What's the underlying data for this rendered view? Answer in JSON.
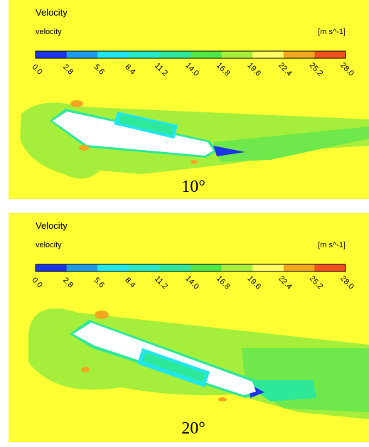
{
  "panels": [
    {
      "title": "Velocity",
      "variable": "velocity",
      "unit": "[m s^-1]",
      "colorbar": {
        "colors": [
          "#1c35e6",
          "#1e9be8",
          "#20e6ee",
          "#26e8c4",
          "#2ee89a",
          "#50e848",
          "#a6ee3c",
          "#ffff66",
          "#f2a81e",
          "#f2501c"
        ],
        "ticks": [
          "0.0",
          "2.8",
          "5.6",
          "8.4",
          "11.2",
          "14.0",
          "16.8",
          "19.6",
          "22.4",
          "25.2",
          "28.0"
        ]
      },
      "caption": "10°"
    },
    {
      "title": "Velocity",
      "variable": "velocity",
      "unit": "[m s^-1]",
      "colorbar": {
        "colors": [
          "#1c35e6",
          "#1e9be8",
          "#20e6ee",
          "#26e8c4",
          "#2ee89a",
          "#50e848",
          "#a6ee3c",
          "#ffff66",
          "#f2a81e",
          "#f2501c"
        ],
        "ticks": [
          "0.0",
          "2.8",
          "5.6",
          "8.4",
          "11.2",
          "14.0",
          "16.8",
          "19.6",
          "22.4",
          "25.2",
          "28.0"
        ]
      },
      "caption": "20°"
    }
  ]
}
